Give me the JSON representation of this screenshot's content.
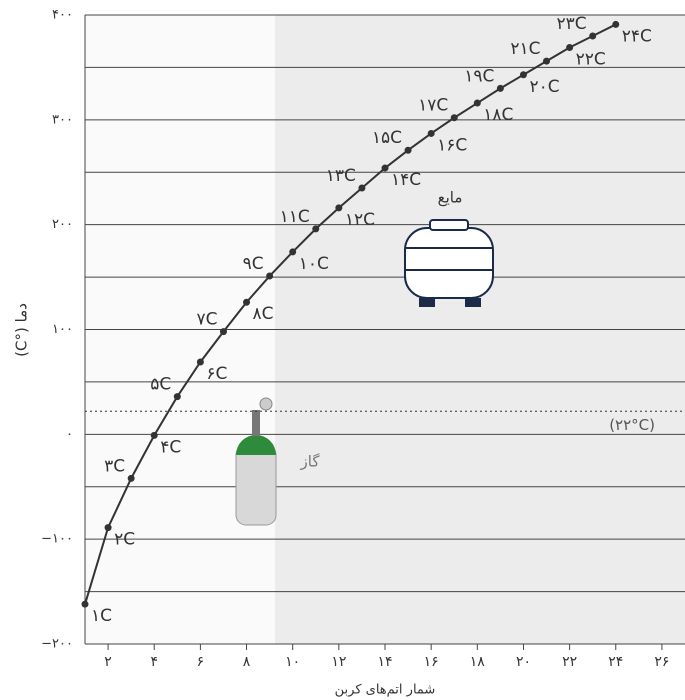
{
  "chart_data": {
    "type": "line",
    "y_label": "دما (°C)",
    "x_label": "شمار اتم‌های کربن",
    "x": [
      1,
      2,
      3,
      4,
      5,
      6,
      7,
      8,
      9,
      10,
      11,
      12,
      13,
      14,
      15,
      16,
      17,
      18,
      19,
      20,
      21,
      22,
      23,
      24
    ],
    "series": [
      {
        "color": "#333333",
        "values": [
          -162,
          -89,
          -42,
          -1,
          36,
          69,
          98,
          126,
          151,
          174,
          196,
          216,
          235,
          254,
          271,
          287,
          302,
          316,
          330,
          343,
          356,
          369,
          380,
          391
        ],
        "point_labels": [
          "۱C",
          "۲C",
          "۳C",
          "۴C",
          "۵C",
          "۶C",
          "۷C",
          "۸C",
          "۹C",
          "۱۰C",
          "۱۱C",
          "۱۲C",
          "۱۳C",
          "۱۴C",
          "۱۵C",
          "۱۶C",
          "۱۷C",
          "۱۸C",
          "۱۹C",
          "۲۰C",
          "۲۱C",
          "۲۲C",
          "۲۳C",
          "۲۴C"
        ]
      }
    ],
    "xlim": [
      1,
      27
    ],
    "ylim": [
      -200,
      400
    ],
    "xticks": [
      {
        "value": 2,
        "label": "۲"
      },
      {
        "value": 4,
        "label": "۴"
      },
      {
        "value": 6,
        "label": "۶"
      },
      {
        "value": 8,
        "label": "۸"
      },
      {
        "value": 10,
        "label": "۱۰"
      },
      {
        "value": 12,
        "label": "۱۲"
      },
      {
        "value": 14,
        "label": "۱۴"
      },
      {
        "value": 16,
        "label": "۱۶"
      },
      {
        "value": 18,
        "label": "۱۸"
      },
      {
        "value": 20,
        "label": "۲۰"
      },
      {
        "value": 22,
        "label": "۲۲"
      },
      {
        "value": 24,
        "label": "۲۴"
      },
      {
        "value": 26,
        "label": "۲۶"
      }
    ],
    "yticks": [
      {
        "value": -200,
        "label": "−۲۰۰"
      },
      {
        "value": -100,
        "label": "−۱۰۰"
      },
      {
        "value": 0,
        "label": "۰"
      },
      {
        "value": 100,
        "label": "۱۰۰"
      },
      {
        "value": 200,
        "label": "۲۰۰"
      },
      {
        "value": 300,
        "label": "۳۰۰"
      },
      {
        "value": 400,
        "label": "۴۰۰"
      }
    ],
    "minor_grid": [
      -150,
      -50,
      50,
      150,
      250,
      350
    ],
    "threshold": {
      "value": 22,
      "label": "(۲۲°C)"
    },
    "region_labels": {
      "liquid": "مایع",
      "gas": "گاز"
    }
  }
}
